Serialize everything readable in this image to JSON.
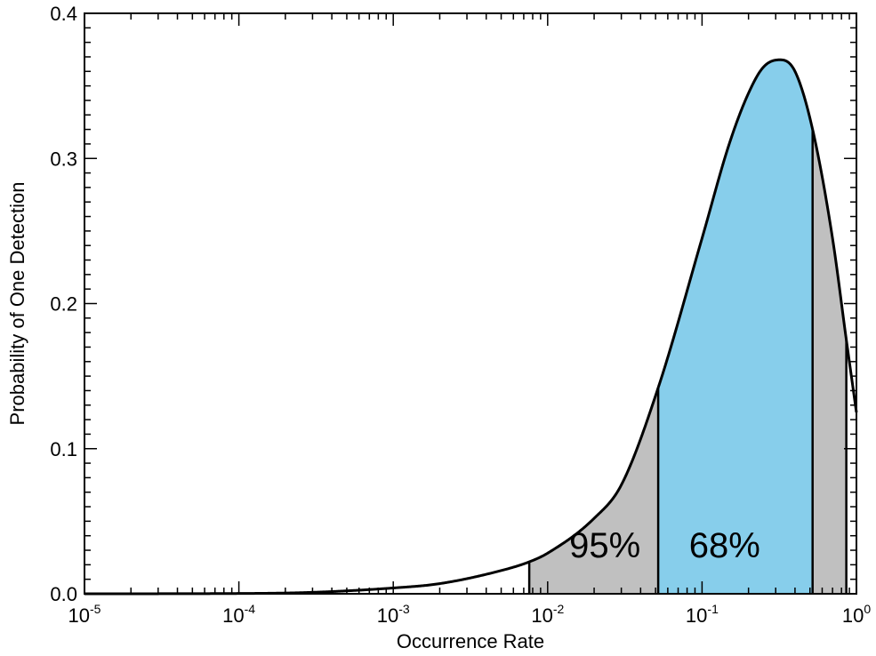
{
  "chart_data": {
    "type": "area",
    "title": "",
    "xlabel": "Occurrence Rate",
    "ylabel": "Probability of One Detection",
    "x_scale": "log",
    "xlim": [
      1e-05,
      1
    ],
    "ylim": [
      0,
      0.4
    ],
    "grid": false,
    "x_ticks": [
      {
        "value": 1e-05,
        "base": "10",
        "exp": "-5"
      },
      {
        "value": 0.0001,
        "base": "10",
        "exp": "-4"
      },
      {
        "value": 0.001,
        "base": "10",
        "exp": "-3"
      },
      {
        "value": 0.01,
        "base": "10",
        "exp": "-2"
      },
      {
        "value": 0.1,
        "base": "10",
        "exp": "-1"
      },
      {
        "value": 1,
        "base": "10",
        "exp": "0"
      }
    ],
    "y_ticks": [
      {
        "value": 0.0,
        "label": "0.0"
      },
      {
        "value": 0.1,
        "label": "0.1"
      },
      {
        "value": 0.2,
        "label": "0.2"
      },
      {
        "value": 0.3,
        "label": "0.3"
      },
      {
        "value": 0.4,
        "label": "0.4"
      }
    ],
    "series": [
      {
        "x": [
          1e-05,
          0.0001,
          0.0003,
          0.001,
          0.002,
          0.005,
          0.0076,
          0.01,
          0.02,
          0.03,
          0.052,
          0.1,
          0.15,
          0.2,
          0.25,
          0.32,
          0.4,
          0.52,
          0.7,
          0.86,
          1.0
        ],
        "y": [
          0.0,
          0.0002,
          0.001,
          0.004,
          0.007,
          0.016,
          0.022,
          0.028,
          0.052,
          0.075,
          0.142,
          0.245,
          0.31,
          0.345,
          0.363,
          0.368,
          0.36,
          0.32,
          0.245,
          0.175,
          0.125
        ]
      }
    ],
    "regions": [
      {
        "label": "95%",
        "x_from": 0.0076,
        "x_to": 0.86,
        "color": "#c0c0c0"
      },
      {
        "label": "68%",
        "x_from": 0.052,
        "x_to": 0.52,
        "color": "#87ceeb"
      }
    ],
    "region_label_positions": [
      {
        "label": "95%",
        "x": 0.0235,
        "y": 0.025
      },
      {
        "label": "68%",
        "x": 0.14,
        "y": 0.025
      }
    ]
  }
}
